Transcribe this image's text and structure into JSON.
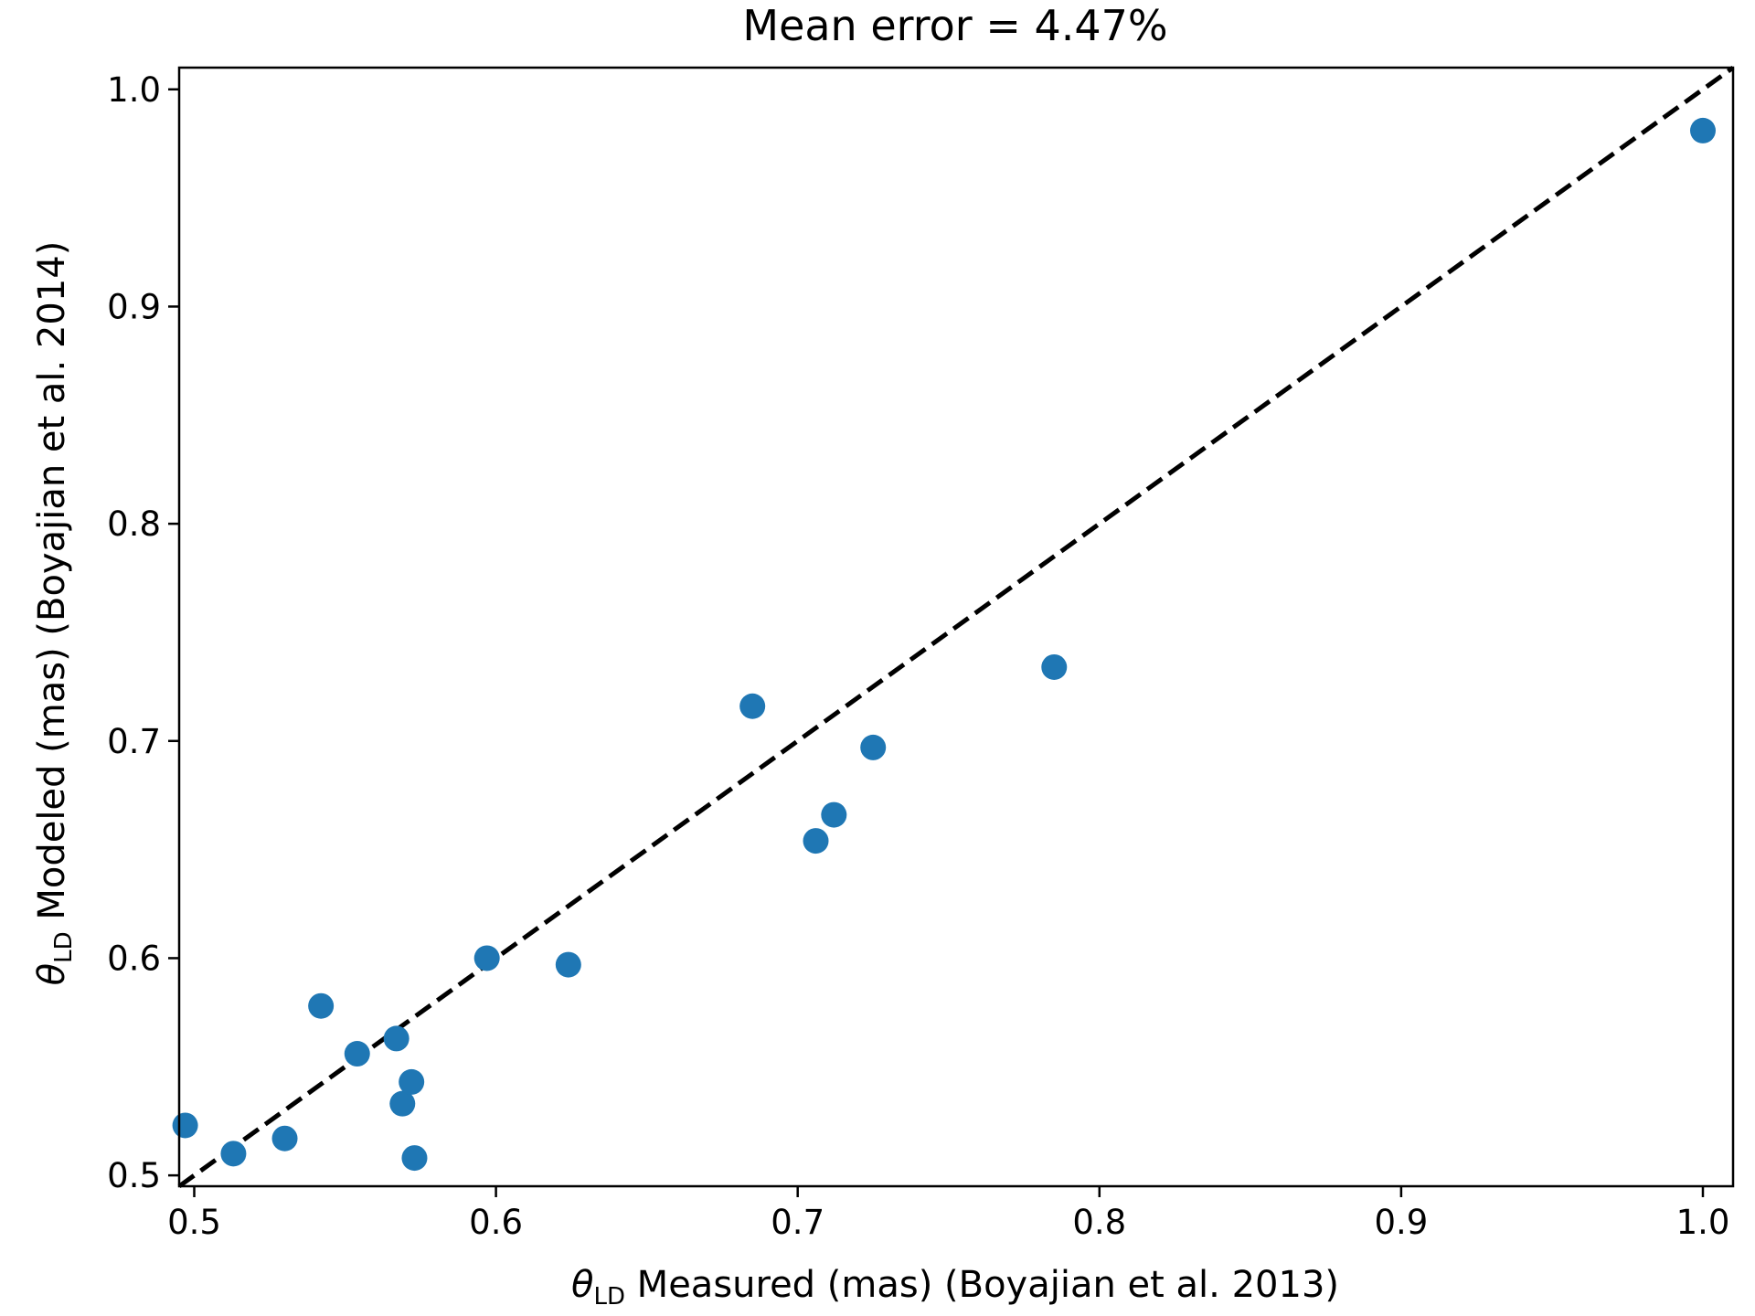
{
  "chart_data": {
    "type": "scatter",
    "title": "Mean error = 4.47%",
    "xlabel_symbol": "θ",
    "xlabel_sub": "LD",
    "xlabel_text": " Measured (mas) (Boyajian et al. 2013)",
    "ylabel_symbol": "θ",
    "ylabel_sub": "LD",
    "ylabel_text": " Modeled (mas) (Boyajian et al. 2014)",
    "xlim": [
      0.495,
      1.01
    ],
    "ylim": [
      0.495,
      1.01
    ],
    "xticks": [
      0.5,
      0.6,
      0.7,
      0.8,
      0.9,
      1.0
    ],
    "yticks": [
      0.5,
      0.6,
      0.7,
      0.8,
      0.9,
      1.0
    ],
    "xtick_labels": [
      "0.5",
      "0.6",
      "0.7",
      "0.8",
      "0.9",
      "1.0"
    ],
    "ytick_labels": [
      "0.5",
      "0.6",
      "0.7",
      "0.8",
      "0.9",
      "1.0"
    ],
    "reference_line": "y = x (dashed)",
    "grid": false,
    "color": "#1f77b4",
    "points": [
      {
        "x": 0.497,
        "y": 0.523
      },
      {
        "x": 0.513,
        "y": 0.51
      },
      {
        "x": 0.53,
        "y": 0.517
      },
      {
        "x": 0.542,
        "y": 0.578
      },
      {
        "x": 0.554,
        "y": 0.556
      },
      {
        "x": 0.567,
        "y": 0.563
      },
      {
        "x": 0.569,
        "y": 0.533
      },
      {
        "x": 0.572,
        "y": 0.543
      },
      {
        "x": 0.573,
        "y": 0.508
      },
      {
        "x": 0.597,
        "y": 0.6
      },
      {
        "x": 0.624,
        "y": 0.597
      },
      {
        "x": 0.685,
        "y": 0.716
      },
      {
        "x": 0.706,
        "y": 0.654
      },
      {
        "x": 0.712,
        "y": 0.666
      },
      {
        "x": 0.725,
        "y": 0.697
      },
      {
        "x": 0.785,
        "y": 0.734
      },
      {
        "x": 1.0,
        "y": 0.981
      }
    ]
  }
}
